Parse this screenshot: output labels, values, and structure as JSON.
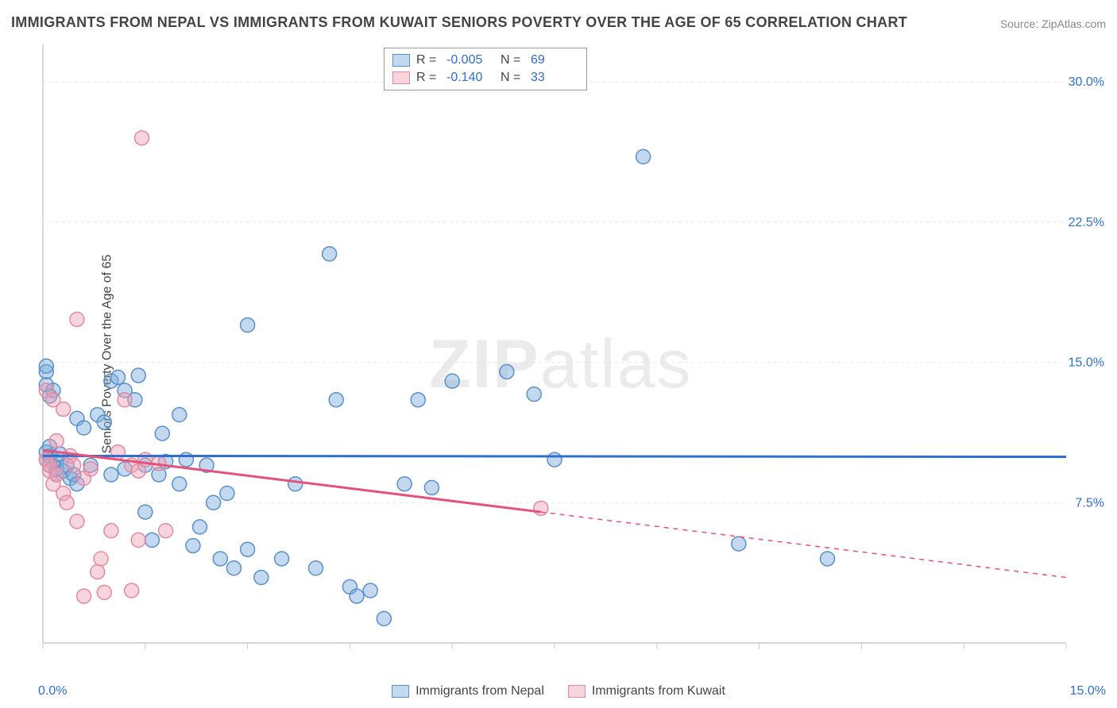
{
  "title": "IMMIGRANTS FROM NEPAL VS IMMIGRANTS FROM KUWAIT SENIORS POVERTY OVER THE AGE OF 65 CORRELATION CHART",
  "source": "Source: ZipAtlas.com",
  "y_axis_label": "Seniors Poverty Over the Age of 65",
  "watermark_bold": "ZIP",
  "watermark_rest": "atlas",
  "chart": {
    "type": "scatter_correlation",
    "background_color": "#ffffff",
    "grid_color": "#e5e5e5",
    "axis_color": "#cccccc",
    "tick_color": "#2f6fd0",
    "text_color": "#444444",
    "xlim": [
      0,
      15
    ],
    "ylim": [
      0,
      32
    ],
    "x_ticks": {
      "min_label": "0.0%",
      "max_label": "15.0%",
      "minor_step": 1.5
    },
    "y_ticks": [
      {
        "v": 7.5,
        "label": "7.5%"
      },
      {
        "v": 15.0,
        "label": "15.0%"
      },
      {
        "v": 22.5,
        "label": "22.5%"
      },
      {
        "v": 30.0,
        "label": "30.0%"
      }
    ],
    "marker_radius": 9,
    "marker_stroke_width": 1.5,
    "trend_line_width": 3,
    "series": [
      {
        "name": "Immigrants from Nepal",
        "color_fill": "rgba(120,170,220,0.45)",
        "color_stroke": "#5b8fc7",
        "line_color": "#2f6fd0",
        "R": "-0.005",
        "N": "69",
        "trend": {
          "x1": 0,
          "y1": 10.0,
          "x2": 15,
          "y2": 9.95,
          "dash_from_x": 15
        },
        "points": [
          [
            0.05,
            14.5
          ],
          [
            0.05,
            13.8
          ],
          [
            0.05,
            10.2
          ],
          [
            0.05,
            9.8
          ],
          [
            0.1,
            10.0
          ],
          [
            0.1,
            9.5
          ],
          [
            0.1,
            10.5
          ],
          [
            0.15,
            13.5
          ],
          [
            0.2,
            9.0
          ],
          [
            0.2,
            9.3
          ],
          [
            0.2,
            9.7
          ],
          [
            0.25,
            10.1
          ],
          [
            0.3,
            9.2
          ],
          [
            0.35,
            9.5
          ],
          [
            0.4,
            8.8
          ],
          [
            0.45,
            9.0
          ],
          [
            0.5,
            8.5
          ],
          [
            0.5,
            12.0
          ],
          [
            0.6,
            11.5
          ],
          [
            0.7,
            9.5
          ],
          [
            0.8,
            12.2
          ],
          [
            0.9,
            11.8
          ],
          [
            1.0,
            9.0
          ],
          [
            1.0,
            14.0
          ],
          [
            1.1,
            14.2
          ],
          [
            1.2,
            9.3
          ],
          [
            1.2,
            13.5
          ],
          [
            1.35,
            13.0
          ],
          [
            1.4,
            14.3
          ],
          [
            1.5,
            7.0
          ],
          [
            1.5,
            9.5
          ],
          [
            1.6,
            5.5
          ],
          [
            1.7,
            9.0
          ],
          [
            1.75,
            11.2
          ],
          [
            1.8,
            9.7
          ],
          [
            2.0,
            8.5
          ],
          [
            2.0,
            12.2
          ],
          [
            2.1,
            9.8
          ],
          [
            2.2,
            5.2
          ],
          [
            2.3,
            6.2
          ],
          [
            2.4,
            9.5
          ],
          [
            2.5,
            7.5
          ],
          [
            2.6,
            4.5
          ],
          [
            2.7,
            8.0
          ],
          [
            2.8,
            4.0
          ],
          [
            3.0,
            5.0
          ],
          [
            3.0,
            17.0
          ],
          [
            3.2,
            3.5
          ],
          [
            3.5,
            4.5
          ],
          [
            3.7,
            8.5
          ],
          [
            4.0,
            4.0
          ],
          [
            4.2,
            20.8
          ],
          [
            4.3,
            13.0
          ],
          [
            4.5,
            3.0
          ],
          [
            4.6,
            2.5
          ],
          [
            4.8,
            2.8
          ],
          [
            5.0,
            1.3
          ],
          [
            5.3,
            8.5
          ],
          [
            5.5,
            13.0
          ],
          [
            5.7,
            8.3
          ],
          [
            6.0,
            14.0
          ],
          [
            6.8,
            14.5
          ],
          [
            7.2,
            13.3
          ],
          [
            7.5,
            9.8
          ],
          [
            8.8,
            26.0
          ],
          [
            10.2,
            5.3
          ],
          [
            11.5,
            4.5
          ],
          [
            0.05,
            14.8
          ],
          [
            0.1,
            13.2
          ]
        ]
      },
      {
        "name": "Immigrants from Kuwait",
        "color_fill": "rgba(240,160,180,0.45)",
        "color_stroke": "#e08aa3",
        "line_color": "#e5517a",
        "R": "-0.140",
        "N": "33",
        "trend": {
          "x1": 0,
          "y1": 10.3,
          "x2": 7.3,
          "y2": 7.0,
          "dash_from_x": 7.3,
          "dash_to_x": 15,
          "dash_to_y": 3.5
        },
        "points": [
          [
            0.05,
            13.5
          ],
          [
            0.05,
            9.8
          ],
          [
            0.1,
            9.2
          ],
          [
            0.1,
            9.5
          ],
          [
            0.15,
            8.5
          ],
          [
            0.15,
            13.0
          ],
          [
            0.2,
            9.0
          ],
          [
            0.2,
            10.8
          ],
          [
            0.3,
            12.5
          ],
          [
            0.3,
            8.0
          ],
          [
            0.35,
            7.5
          ],
          [
            0.4,
            10.0
          ],
          [
            0.45,
            9.5
          ],
          [
            0.5,
            17.3
          ],
          [
            0.5,
            6.5
          ],
          [
            0.6,
            8.8
          ],
          [
            0.6,
            2.5
          ],
          [
            0.7,
            9.3
          ],
          [
            0.8,
            3.8
          ],
          [
            0.85,
            4.5
          ],
          [
            0.9,
            2.7
          ],
          [
            1.0,
            6.0
          ],
          [
            1.1,
            10.2
          ],
          [
            1.2,
            13.0
          ],
          [
            1.3,
            9.5
          ],
          [
            1.3,
            2.8
          ],
          [
            1.4,
            9.2
          ],
          [
            1.4,
            5.5
          ],
          [
            1.45,
            27.0
          ],
          [
            1.5,
            9.8
          ],
          [
            1.7,
            9.6
          ],
          [
            1.8,
            6.0
          ],
          [
            7.3,
            7.2
          ]
        ]
      }
    ]
  },
  "legend_top": {
    "R_label": "R =",
    "N_label": "N ="
  },
  "legend_bottom": {
    "items": [
      "Immigrants from Nepal",
      "Immigrants from Kuwait"
    ]
  }
}
